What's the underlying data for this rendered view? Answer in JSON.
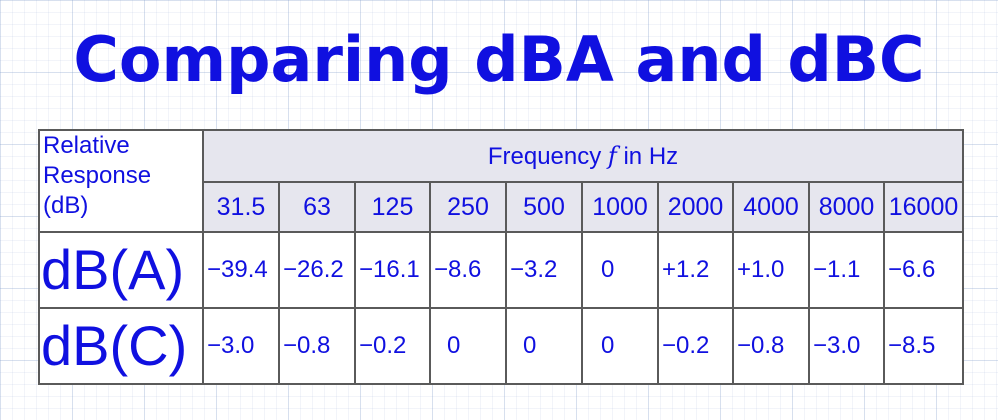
{
  "title": "Comparing dBA and dBC",
  "table": {
    "corner_label_lines": [
      "Relative",
      "Response",
      "(dB)"
    ],
    "frequency_header": {
      "prefix": "Frequency ",
      "symbol": "f",
      "suffix": " in Hz"
    },
    "frequencies": [
      "31.5",
      "63",
      "125",
      "250",
      "500",
      "1000",
      "2000",
      "4000",
      "8000",
      "16000"
    ],
    "rows": [
      {
        "label": "dB(A)",
        "values": [
          "−39.4",
          "−26.2",
          "−16.1",
          "−8.6",
          "−3.2",
          "0",
          "+1.2",
          "+1.0",
          "−1.1",
          "−6.6"
        ]
      },
      {
        "label": "dB(C)",
        "values": [
          "−3.0",
          "−0.8",
          "−0.2",
          "0",
          "0",
          "0",
          "−0.2",
          "−0.8",
          "−3.0",
          "−8.5"
        ]
      }
    ]
  },
  "colors": {
    "text": "#1010e0",
    "header_background": "#e6e6ee",
    "border": "#5a5a5a"
  }
}
